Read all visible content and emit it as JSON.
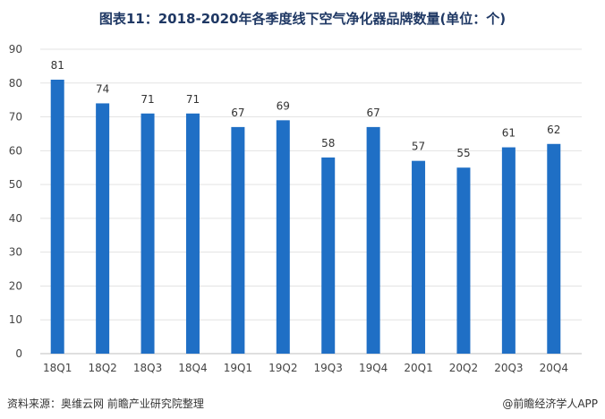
{
  "header": {
    "title": "图表11：2018-2020年各季度线下空气净化器品牌数量(单位：个)"
  },
  "chart_data": {
    "type": "bar",
    "title": "图表11：2018-2020年各季度线下空气净化器品牌数量(单位：个)",
    "categories": [
      "18Q1",
      "18Q2",
      "18Q3",
      "18Q4",
      "19Q1",
      "19Q2",
      "19Q3",
      "19Q4",
      "20Q1",
      "20Q2",
      "20Q3",
      "20Q4"
    ],
    "values": [
      81,
      74,
      71,
      71,
      67,
      69,
      58,
      67,
      57,
      55,
      61,
      62
    ],
    "ylim": [
      0,
      90
    ],
    "yticks": [
      0,
      10,
      20,
      30,
      40,
      50,
      60,
      70,
      80,
      90
    ],
    "grid": true,
    "bar_color": "#1f6fc5"
  },
  "footer": {
    "source": "资料来源：奥维云网 前瞻产业研究院整理",
    "brand": "@前瞻经济学人APP"
  }
}
